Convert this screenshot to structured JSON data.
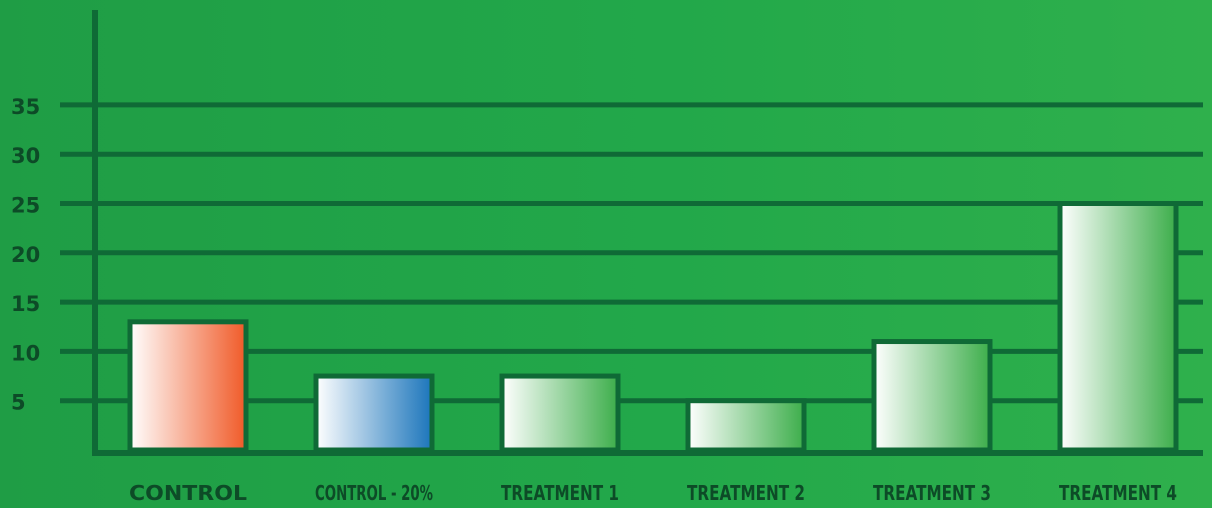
{
  "chart_data": {
    "type": "bar",
    "title": "",
    "xlabel": "",
    "ylabel": "",
    "categories": [
      "CONTROL",
      "CONTROL - 20%",
      "TREATMENT 1",
      "TREATMENT 2",
      "TREATMENT 3",
      "TREATMENT 4"
    ],
    "values": [
      13,
      7.5,
      7.5,
      5,
      11,
      25
    ],
    "yticks": [
      5,
      10,
      15,
      20,
      25,
      30,
      35
    ],
    "ylim": [
      0,
      35
    ],
    "grid": true,
    "legend": "none",
    "colors": {
      "background_start": "#1f9d45",
      "background_end": "#2fb04c",
      "axis_and_grid": "#0f6a36",
      "text": "#0d4b27",
      "bar_outline": "#0f6a36",
      "bar_gradients": [
        [
          "#ffffff",
          "#f05a28"
        ],
        [
          "#ffffff",
          "#1b75bb"
        ],
        [
          "#ffffff",
          "#3dae4b"
        ],
        [
          "#ffffff",
          "#3dae4b"
        ],
        [
          "#ffffff",
          "#3dae4b"
        ],
        [
          "#ffffff",
          "#3dae4b"
        ]
      ]
    }
  }
}
